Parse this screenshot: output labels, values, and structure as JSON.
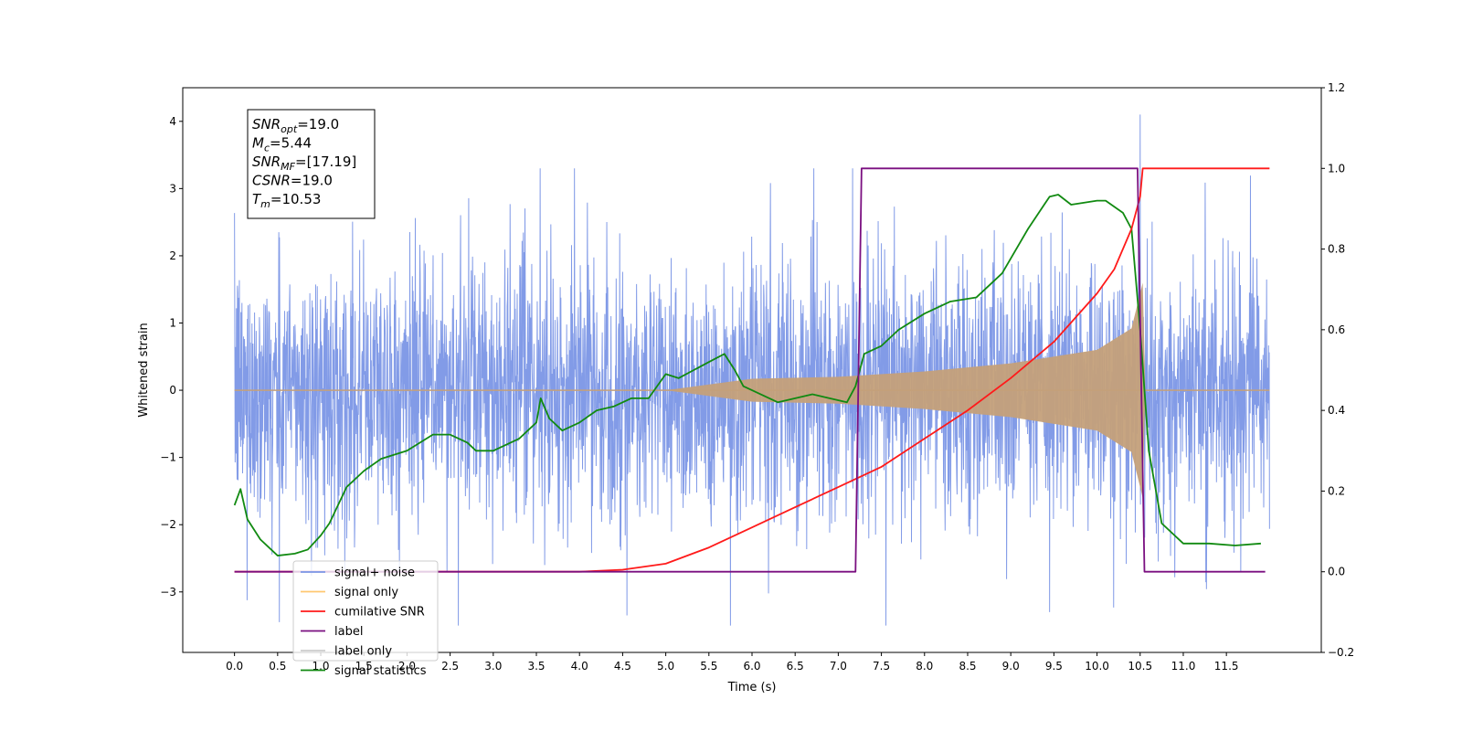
{
  "chart_data": {
    "type": "line",
    "xlabel": "Time (s)",
    "ylabel_left": "Whitened strain",
    "ylabel_right": "",
    "xlim": [
      -0.6,
      12.6
    ],
    "ylim_left": [
      -3.9,
      4.5
    ],
    "ylim_right": [
      -0.2,
      1.2
    ],
    "x_ticks": [
      "0.0",
      "0.5",
      "1.0",
      "1.5",
      "2.0",
      "2.5",
      "3.0",
      "3.5",
      "4.0",
      "4.5",
      "5.0",
      "5.5",
      "6.0",
      "6.5",
      "7.0",
      "7.5",
      "8.0",
      "8.5",
      "9.0",
      "9.5",
      "10.0",
      "10.5",
      "11.0",
      "11.5"
    ],
    "y_ticks_left": [
      "4",
      "3",
      "2",
      "1",
      "0",
      "−1",
      "−2",
      "−3"
    ],
    "y_ticks_right": [
      "1.2",
      "1.0",
      "0.8",
      "0.6",
      "0.4",
      "0.2",
      "0.0",
      "−0.2"
    ],
    "grid": false,
    "legend_position": "lower-left",
    "legend": [
      {
        "label": "signal+ noise",
        "color": "#7b96e6"
      },
      {
        "label": "signal only",
        "color": "#ffc870"
      },
      {
        "label": "cumilative SNR",
        "color": "#ff1a1a"
      },
      {
        "label": "label",
        "color": "#7a0f80"
      },
      {
        "label": "label only",
        "color": "#cccccc"
      },
      {
        "label": "signal statistics",
        "color": "#118a11"
      }
    ],
    "annotation": [
      {
        "base": "SNR",
        "sub": "opt",
        "value": "=19.0"
      },
      {
        "base": "M",
        "sub": "c",
        "value": "=5.44"
      },
      {
        "base": "SNR",
        "sub": "MF",
        "value": "=[17.19]"
      },
      {
        "base": "CSNR",
        "sub": "",
        "value": "=19.0"
      },
      {
        "base": "T",
        "sub": "m",
        "value": "=10.53"
      }
    ],
    "series": [
      {
        "name": "signal+ noise",
        "axis": "left",
        "color": "#7b96e6",
        "x_range": [
          0.0,
          12.0
        ],
        "band_lower": -2.5,
        "band_upper": 2.5,
        "peak_max": 4.1,
        "peak_min": -3.5
      },
      {
        "name": "signal only",
        "axis": "left",
        "color": "#c4a07a",
        "chirp_start": 5.0,
        "merger": 10.53,
        "end": 12.0,
        "amp_at_6": 0.17,
        "amp_at_7": 0.2,
        "amp_at_8": 0.28,
        "amp_at_9": 0.4,
        "amp_at_10": 0.6,
        "amp_at_10_4": 0.92,
        "amp_peak": 1.6
      },
      {
        "name": "cumilative SNR",
        "axis": "right",
        "color": "#ff1a1a",
        "x": [
          0.0,
          3.5,
          4.0,
          4.5,
          5.0,
          5.5,
          6.0,
          6.5,
          7.0,
          7.5,
          8.0,
          8.5,
          9.0,
          9.5,
          10.0,
          10.2,
          10.4,
          10.5,
          10.53,
          12.0
        ],
        "y": [
          0.0,
          0.0,
          0.0,
          0.005,
          0.02,
          0.06,
          0.11,
          0.16,
          0.21,
          0.26,
          0.33,
          0.4,
          0.48,
          0.57,
          0.69,
          0.75,
          0.85,
          0.93,
          1.0,
          1.0
        ]
      },
      {
        "name": "label",
        "axis": "right",
        "color": "#7a0f80",
        "x": [
          0.0,
          7.2,
          7.27,
          10.47,
          10.55,
          11.95
        ],
        "y": [
          0.0,
          0.0,
          1.0,
          1.0,
          0.0,
          0.0
        ]
      },
      {
        "name": "signal statistics",
        "axis": "right",
        "color": "#118a11",
        "x": [
          0.0,
          0.07,
          0.15,
          0.3,
          0.5,
          0.7,
          0.85,
          1.0,
          1.1,
          1.3,
          1.5,
          1.7,
          2.0,
          2.3,
          2.5,
          2.7,
          2.8,
          3.0,
          3.3,
          3.5,
          3.55,
          3.65,
          3.8,
          4.0,
          4.2,
          4.4,
          4.6,
          4.8,
          5.0,
          5.15,
          5.5,
          5.68,
          5.8,
          5.9,
          6.0,
          6.3,
          6.5,
          6.7,
          6.9,
          7.1,
          7.2,
          7.3,
          7.5,
          7.7,
          8.0,
          8.3,
          8.6,
          8.9,
          9.2,
          9.45,
          9.55,
          9.7,
          10.0,
          10.1,
          10.3,
          10.4,
          10.5,
          10.6,
          10.75,
          11.0,
          11.3,
          11.6,
          11.9
        ],
        "y": [
          0.165,
          0.205,
          0.13,
          0.08,
          0.04,
          0.045,
          0.055,
          0.09,
          0.12,
          0.21,
          0.25,
          0.28,
          0.3,
          0.34,
          0.34,
          0.32,
          0.3,
          0.3,
          0.33,
          0.37,
          0.43,
          0.38,
          0.35,
          0.37,
          0.4,
          0.41,
          0.43,
          0.43,
          0.49,
          0.48,
          0.52,
          0.54,
          0.5,
          0.46,
          0.45,
          0.42,
          0.43,
          0.44,
          0.43,
          0.42,
          0.46,
          0.54,
          0.56,
          0.6,
          0.64,
          0.67,
          0.68,
          0.74,
          0.85,
          0.93,
          0.935,
          0.91,
          0.92,
          0.92,
          0.89,
          0.85,
          0.6,
          0.3,
          0.12,
          0.07,
          0.07,
          0.065,
          0.07
        ]
      }
    ]
  }
}
